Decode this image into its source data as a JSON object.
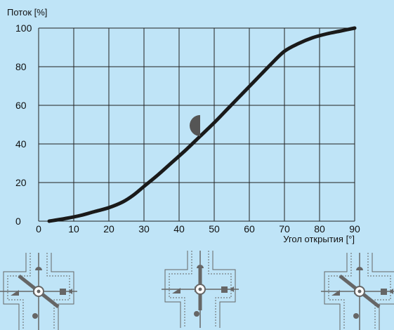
{
  "chart_data": {
    "type": "line",
    "ylabel": "Поток [%]",
    "xlabel": "Угол открытия [°]",
    "xlim": [
      0,
      90
    ],
    "ylim": [
      0,
      100
    ],
    "xticks": [
      0,
      10,
      20,
      30,
      40,
      50,
      60,
      70,
      80,
      90
    ],
    "yticks": [
      0,
      20,
      40,
      60,
      80,
      100
    ],
    "grid": true,
    "series": [
      {
        "x": [
          3,
          8,
          12,
          16,
          20,
          24,
          27,
          30,
          34,
          38,
          42,
          46,
          50,
          54,
          58,
          62,
          66,
          70,
          74,
          78,
          82,
          86,
          90
        ],
        "y": [
          0,
          1.5,
          3,
          5,
          7,
          10,
          13.5,
          18,
          24,
          30.5,
          37,
          44,
          51,
          58.5,
          66,
          73.5,
          81,
          88,
          92,
          95,
          97,
          98.5,
          100
        ]
      }
    ],
    "marker": {
      "x": 46,
      "y": 49.5
    }
  },
  "colors": {
    "background": "#bfe4f7",
    "grid": "#222222",
    "curve": "#1a1a1a",
    "marker": "#555555",
    "diagram": "#666666"
  },
  "diagrams": [
    {
      "name": "valve-diagram-left",
      "handle": "diagonal"
    },
    {
      "name": "valve-diagram-center",
      "handle": "vertical"
    },
    {
      "name": "valve-diagram-right",
      "handle": "diagonal"
    }
  ]
}
